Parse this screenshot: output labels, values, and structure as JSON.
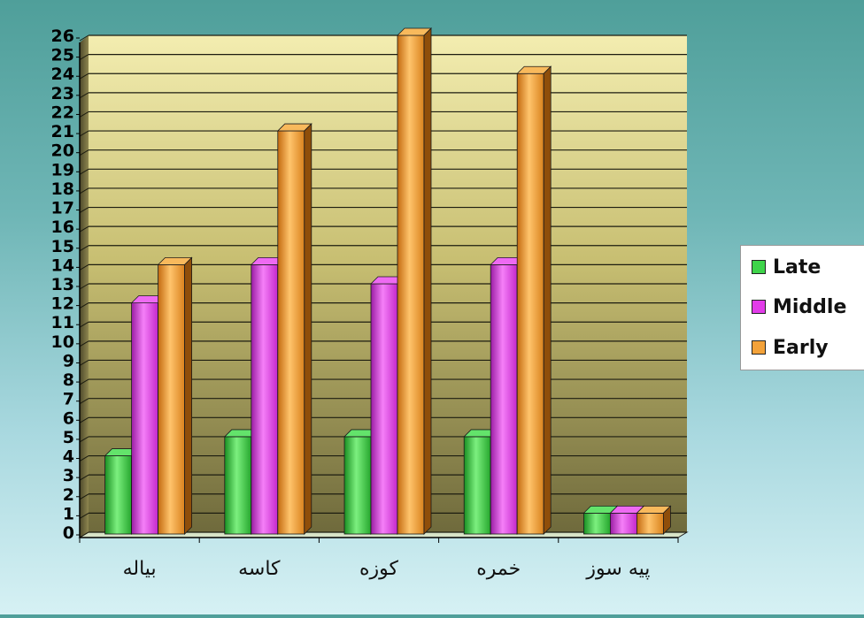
{
  "chart_data": {
    "type": "bar",
    "categories": [
      "بیاله",
      "کاسه",
      "کوزه",
      "خمره",
      "پیه سوز"
    ],
    "series": [
      {
        "name": "Late",
        "values": [
          4,
          5,
          5,
          5,
          1
        ],
        "color": "#3ed44a"
      },
      {
        "name": "Middle",
        "values": [
          12,
          14,
          13,
          14,
          1
        ],
        "color": "#e23ce9"
      },
      {
        "name": "Early",
        "values": [
          14,
          21,
          26,
          24,
          1
        ],
        "color": "#f3a23a"
      }
    ],
    "ylim": [
      0,
      26
    ],
    "yticks": [
      "0",
      "1",
      "2",
      "3",
      "4",
      "5",
      "6",
      "7",
      "8",
      "9",
      "10",
      "11",
      "12",
      "13",
      "14",
      "15",
      "16",
      "17",
      "18",
      "19",
      "20",
      "21",
      "22",
      "23",
      "24",
      "25",
      "26"
    ],
    "title": "",
    "xlabel": "",
    "ylabel": "",
    "grid": true,
    "legend_position": "right"
  }
}
